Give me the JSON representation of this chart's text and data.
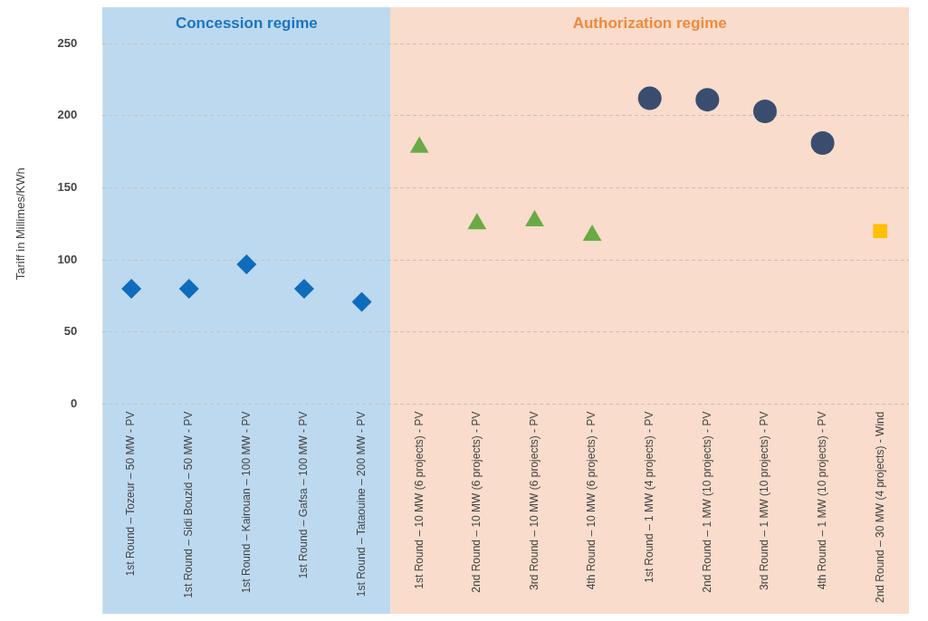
{
  "chart_data": {
    "type": "scatter",
    "ylabel": "Tariff in Millimes/KWh",
    "categories": [
      "1st Round – Tozeur – 50 MW - PV",
      "1st Round – Sidi Bouzid – 50 MW - PV",
      "1st Round – Kairouan – 100 MW - PV",
      "1st Round – Gafsa – 100 MW - PV",
      "1st Round – Tataouine – 200 MW - PV",
      "1st Round – 10 MW (6 projects) - PV",
      "2nd Round – 10 MW (6 projects) - PV",
      "3rd Round – 10 MW (6 projects) - PV",
      "4th Round – 10 MW (6 projects) - PV",
      "1st Round – 1 MW (4 projects) - PV",
      "2nd Round – 1 MW (10 projects) - PV",
      "3rd Round – 1 MW (10 projects) - PV",
      "4th Round – 1 MW (10 projects) - PV",
      "2nd Round – 30 MW (4 projects) - Wind"
    ],
    "series": [
      {
        "color": "#0f6cbd",
        "marker": "diamond",
        "values": [
          80,
          80,
          97,
          80,
          71,
          null,
          null,
          null,
          null,
          null,
          null,
          null,
          null,
          null
        ]
      },
      {
        "color": "#6aaa46",
        "marker": "triangle",
        "values": [
          null,
          null,
          null,
          null,
          null,
          178,
          125,
          127,
          117,
          null,
          null,
          null,
          null,
          null
        ]
      },
      {
        "color": "#3a4d6e",
        "marker": "circle",
        "values": [
          null,
          null,
          null,
          null,
          null,
          null,
          null,
          null,
          null,
          212,
          211,
          203,
          181,
          null
        ]
      },
      {
        "color": "#ffc000",
        "marker": "square",
        "values": [
          null,
          null,
          null,
          null,
          null,
          null,
          null,
          null,
          null,
          null,
          null,
          null,
          null,
          120
        ]
      }
    ],
    "bands": [
      {
        "axis": "x",
        "from": "1st Round – Tozeur – 50 MW - PV",
        "to": "1st Round – Tataouine – 200 MW - PV",
        "label": "Concession regime",
        "color": "#bdd9ef"
      },
      {
        "axis": "x",
        "from": "1st Round – 10 MW (6 projects) - PV",
        "to": "2nd Round – 30 MW (4 projects) - Wind",
        "label": "Authorization regime",
        "color": "#f9dccb"
      }
    ],
    "ylim": [
      0,
      250
    ],
    "yticks": [
      0,
      50,
      100,
      150,
      200,
      250
    ],
    "grid": "y",
    "legend": false
  }
}
